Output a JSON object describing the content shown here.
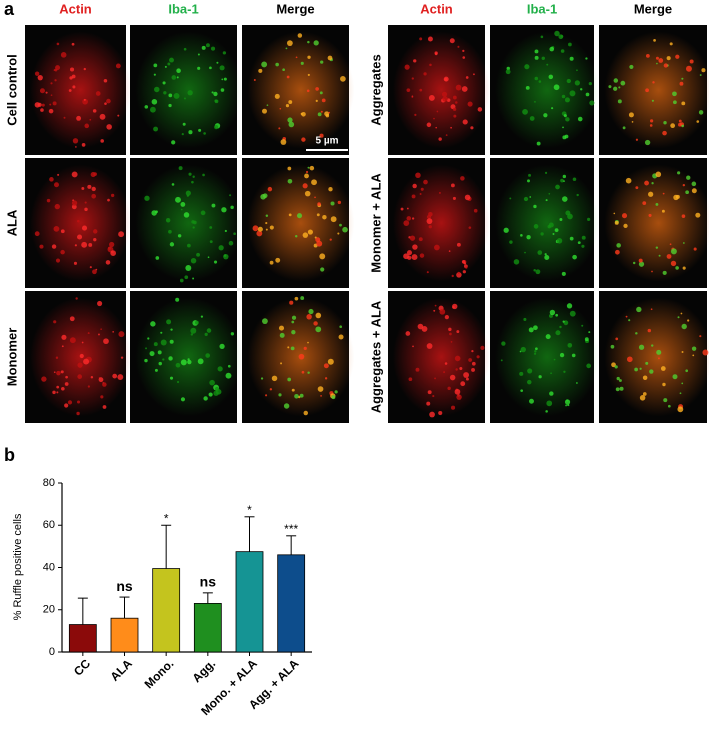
{
  "panel_a": {
    "label": "a",
    "columns": [
      "Actin",
      "Iba-1",
      "Merge"
    ],
    "left_rows": [
      "Cell control",
      "ALA",
      "Monomer"
    ],
    "right_rows": [
      "Aggregates",
      "Monomer + ALA",
      "Aggregates + ALA"
    ],
    "scale_bar": "5 µm"
  },
  "chart_data": {
    "type": "bar",
    "panel_label": "b",
    "ylabel": "% Ruffle positive cells",
    "categories": [
      "CC",
      "ALA",
      "Mono.",
      "Agg.",
      "Mono. + ALA",
      "Agg. + ALA"
    ],
    "values": [
      13,
      16,
      39.5,
      23,
      47.5,
      46
    ],
    "errors": [
      12.5,
      10,
      20.5,
      5,
      16.5,
      9
    ],
    "colors": [
      "#8b0a0a",
      "#ff8c1a",
      "#c4c41e",
      "#1f8f1f",
      "#159494",
      "#0d4d8c"
    ],
    "annotations": [
      null,
      "ns",
      "*",
      "ns",
      "*",
      "***"
    ],
    "ylim": [
      0,
      80
    ],
    "yticks": [
      0,
      20,
      40,
      60,
      80
    ]
  }
}
